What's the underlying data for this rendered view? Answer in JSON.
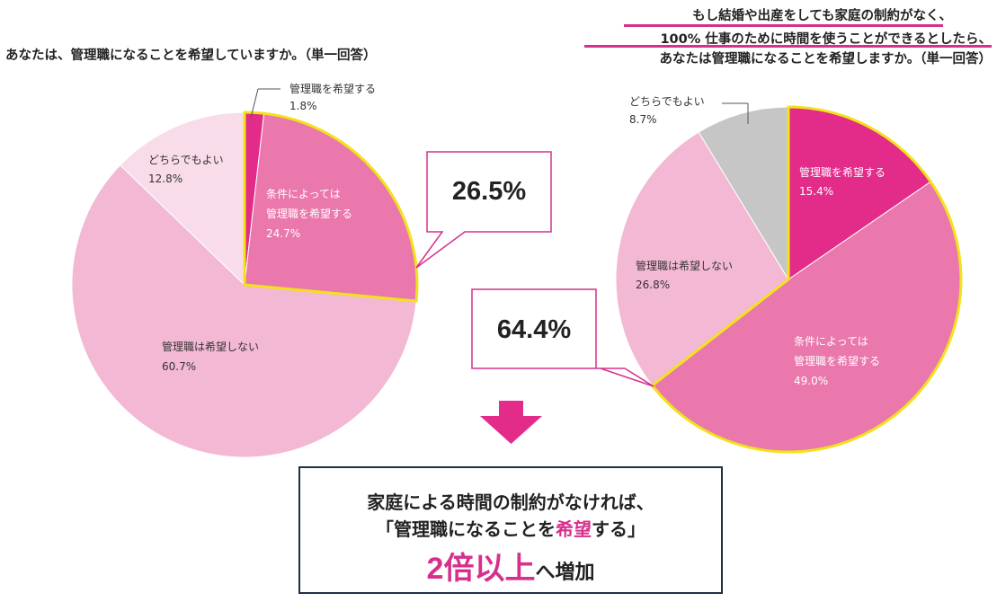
{
  "titles": {
    "left": "あなたは、管理職になることを希望していますか。（単一回答）",
    "right_line1": "もし結婚や出産をしても家庭の制約がなく、",
    "right_line2": "100% 仕事のために時間を使うことができるとしたら、",
    "right_line3": "あなたは管理職になることを希望しますか。（単一回答）"
  },
  "callouts": {
    "left": "26.5%",
    "right": "64.4%"
  },
  "summary": {
    "line1": "家庭による時間の制約がなければ、",
    "line2_pre": "「管理職になることを",
    "line2_highlight": "希望",
    "line2_post": "する」",
    "line3_big": "2倍以上",
    "line3_rest": "へ増加"
  },
  "colors": {
    "accent": "#d6308c",
    "highlight_border": "#f2e21b",
    "summary_border": "#1f3046"
  },
  "chart_data": [
    {
      "type": "pie",
      "title": "あなたは、管理職になることを希望していますか。（単一回答）",
      "start": "12 o'clock, clockwise",
      "highlighted_total": "26.5%",
      "slices": [
        {
          "label": "管理職を希望する",
          "value": 1.8,
          "display": "1.8%",
          "color": "#e32b8a",
          "highlight": true
        },
        {
          "label": "条件によっては管理職を希望する",
          "label_lines": [
            "条件によっては",
            "管理職を希望する"
          ],
          "value": 24.7,
          "display": "24.7%",
          "color": "#ea78ac",
          "highlight": true
        },
        {
          "label": "管理職は希望しない",
          "value": 60.7,
          "display": "60.7%",
          "color": "#f3b8d3",
          "highlight": false
        },
        {
          "label": "どちらでもよい",
          "value": 12.8,
          "display": "12.8%",
          "color": "#f9dce9",
          "highlight": false
        }
      ]
    },
    {
      "type": "pie",
      "title": "もし結婚や出産をしても家庭の制約がなく、100% 仕事のために時間を使うことができるとしたら、あなたは管理職になることを希望しますか。（単一回答）",
      "start": "12 o'clock, clockwise",
      "highlighted_total": "64.4%",
      "slices": [
        {
          "label": "管理職を希望する",
          "value": 15.4,
          "display": "15.4%",
          "color": "#e32b8a",
          "highlight": true
        },
        {
          "label": "条件によっては管理職を希望する",
          "label_lines": [
            "条件によっては",
            "管理職を希望する"
          ],
          "value": 49.0,
          "display": "49.0%",
          "color": "#ea78ac",
          "highlight": true
        },
        {
          "label": "管理職は希望しない",
          "value": 26.8,
          "display": "26.8%",
          "color": "#f3b8d3",
          "highlight": false
        },
        {
          "label": "どちらでもよい",
          "value": 8.7,
          "display": "8.7%",
          "color": "#c6c6c6",
          "highlight": false
        }
      ]
    }
  ]
}
